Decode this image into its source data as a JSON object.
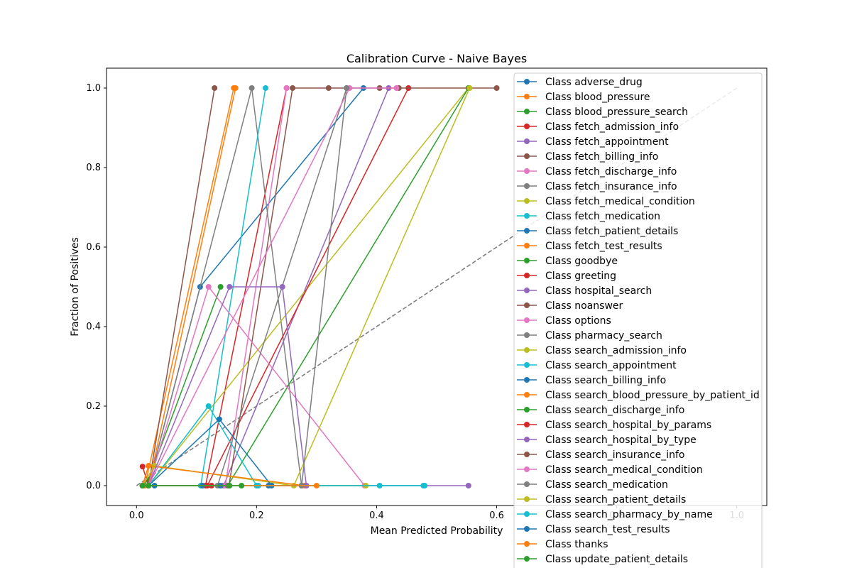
{
  "chart_data": {
    "type": "line",
    "title": "Calibration Curve - Naive Bayes",
    "xlabel": "Mean Predicted Probability",
    "ylabel": "Fraction of Positives",
    "xlim": [
      -0.05,
      1.05
    ],
    "ylim": [
      -0.05,
      1.05
    ],
    "xticks": [
      "0.0",
      "0.2",
      "0.4",
      "0.6",
      "0.8",
      "1.0"
    ],
    "yticks": [
      "0.0",
      "0.2",
      "0.4",
      "0.6",
      "0.8",
      "1.0"
    ],
    "grid": false,
    "legend_placement": "right",
    "reference_line": {
      "style": "dashed",
      "color": "#808080",
      "x": [
        0,
        1
      ],
      "y": [
        0,
        1
      ]
    },
    "series": [
      {
        "name": "Class adverse_drug",
        "color": "#1f77b4",
        "x": [
          0.01,
          0.02,
          0.106,
          0.378
        ],
        "y": [
          0.0,
          0.0,
          0.5,
          1.0
        ]
      },
      {
        "name": "Class blood_pressure",
        "color": "#ff7f0e",
        "x": [
          0.01,
          0.014,
          0.162
        ],
        "y": [
          0.0,
          0.0,
          1.0
        ]
      },
      {
        "name": "Class blood_pressure_search",
        "color": "#2ca02c",
        "x": [
          0.01,
          0.02,
          0.14
        ],
        "y": [
          0.0,
          0.015,
          0.5
        ]
      },
      {
        "name": "Class fetch_admission_info",
        "color": "#d62728",
        "x": [
          0.01,
          0.02,
          0.115,
          0.25
        ],
        "y": [
          0.048,
          0.0,
          0.0,
          1.0
        ]
      },
      {
        "name": "Class fetch_appointment",
        "color": "#9467bd",
        "x": [
          0.01,
          0.02,
          0.145,
          0.42
        ],
        "y": [
          0.0,
          0.0,
          0.0,
          1.0
        ]
      },
      {
        "name": "Class fetch_billing_info",
        "color": "#8c564b",
        "x": [
          0.01,
          0.02,
          0.13
        ],
        "y": [
          0.0,
          0.0,
          1.0
        ]
      },
      {
        "name": "Class fetch_discharge_info",
        "color": "#e377c2",
        "x": [
          0.01,
          0.02,
          0.148,
          0.25
        ],
        "y": [
          0.0,
          0.0,
          0.0,
          1.0
        ]
      },
      {
        "name": "Class fetch_insurance_info",
        "color": "#7f7f7f",
        "x": [
          0.01,
          0.02,
          0.192,
          0.275
        ],
        "y": [
          0.0,
          0.0,
          1.0,
          0.0
        ]
      },
      {
        "name": "Class fetch_medical_condition",
        "color": "#bcbd22",
        "x": [
          0.01,
          0.02,
          0.553
        ],
        "y": [
          0.0,
          0.0,
          1.0
        ]
      },
      {
        "name": "Class fetch_medication",
        "color": "#17becf",
        "x": [
          0.01,
          0.02,
          0.107,
          0.215
        ],
        "y": [
          0.0,
          0.0,
          0.0,
          1.0
        ]
      },
      {
        "name": "Class fetch_patient_details",
        "color": "#1f77b4",
        "x": [
          0.01,
          0.02,
          0.11,
          0.22
        ],
        "y": [
          0.0,
          0.0,
          0.0,
          0.0
        ]
      },
      {
        "name": "Class fetch_test_results",
        "color": "#ff7f0e",
        "x": [
          0.01,
          0.02,
          0.165
        ],
        "y": [
          0.0,
          0.0,
          1.0
        ]
      },
      {
        "name": "Class goodbye",
        "color": "#2ca02c",
        "x": [
          0.01,
          0.02,
          0.152,
          0.553
        ],
        "y": [
          0.0,
          0.0,
          0.0,
          1.0
        ]
      },
      {
        "name": "Class greeting",
        "color": "#d62728",
        "x": [
          0.01,
          0.02,
          0.118,
          0.453
        ],
        "y": [
          0.0,
          0.0,
          0.0,
          1.0
        ]
      },
      {
        "name": "Class hospital_search",
        "color": "#9467bd",
        "x": [
          0.01,
          0.02,
          0.153,
          0.553
        ],
        "y": [
          0.0,
          0.0,
          0.0,
          0.0
        ]
      },
      {
        "name": "Class noanswer",
        "color": "#8c564b",
        "x": [
          0.01,
          0.02,
          0.154,
          0.26,
          0.32,
          0.405,
          0.437,
          0.6
        ],
        "y": [
          0.0,
          0.0,
          0.0,
          1.0,
          1.0,
          1.0,
          1.0,
          1.0
        ]
      },
      {
        "name": "Class options",
        "color": "#e377c2",
        "x": [
          0.01,
          0.02,
          0.12,
          0.38
        ],
        "y": [
          0.0,
          0.0,
          0.5,
          0.0
        ]
      },
      {
        "name": "Class pharmacy_search",
        "color": "#7f7f7f",
        "x": [
          0.01,
          0.02,
          0.135,
          0.35
        ],
        "y": [
          0.0,
          0.0,
          0.0,
          1.0
        ]
      },
      {
        "name": "Class search_admission_info",
        "color": "#bcbd22",
        "x": [
          0.01,
          0.03,
          0.262,
          0.555
        ],
        "y": [
          0.0,
          0.05,
          0.0,
          1.0
        ]
      },
      {
        "name": "Class search_appointment",
        "color": "#17becf",
        "x": [
          0.01,
          0.02,
          0.12,
          0.2,
          0.478
        ],
        "y": [
          0.0,
          0.0,
          0.2,
          0.0,
          0.0
        ]
      },
      {
        "name": "Class search_billing_info",
        "color": "#1f77b4",
        "x": [
          0.01,
          0.02,
          0.138,
          0.225
        ],
        "y": [
          0.0,
          0.0,
          0.167,
          0.0
        ]
      },
      {
        "name": "Class search_blood_pressure_by_patient_id",
        "color": "#ff7f0e",
        "x": [
          0.01,
          0.02,
          0.28
        ],
        "y": [
          0.0,
          0.05,
          0.0
        ]
      },
      {
        "name": "Class search_discharge_info",
        "color": "#2ca02c",
        "x": [
          0.01,
          0.02,
          0.155
        ],
        "y": [
          0.0,
          0.0,
          0.0
        ]
      },
      {
        "name": "Class search_hospital_by_params",
        "color": "#d62728",
        "x": [
          0.01,
          0.02,
          0.125
        ],
        "y": [
          0.0,
          0.0,
          0.0
        ]
      },
      {
        "name": "Class search_hospital_by_type",
        "color": "#9467bd",
        "x": [
          0.01,
          0.02,
          0.155,
          0.243,
          0.283
        ],
        "y": [
          0.0,
          0.0,
          0.5,
          0.5,
          0.0
        ]
      },
      {
        "name": "Class search_insurance_info",
        "color": "#8c564b",
        "x": [
          0.01,
          0.02,
          0.14,
          0.275
        ],
        "y": [
          0.0,
          0.0,
          0.0,
          0.0
        ]
      },
      {
        "name": "Class search_medical_condition",
        "color": "#e377c2",
        "x": [
          0.01,
          0.02,
          0.355,
          0.433
        ],
        "y": [
          0.0,
          0.0,
          1.0,
          1.0
        ]
      },
      {
        "name": "Class search_medication",
        "color": "#7f7f7f",
        "x": [
          0.01,
          0.02,
          0.275,
          0.35
        ],
        "y": [
          0.0,
          0.0,
          0.0,
          1.0
        ]
      },
      {
        "name": "Class search_patient_details",
        "color": "#bcbd22",
        "x": [
          0.01,
          0.02,
          0.382
        ],
        "y": [
          0.0,
          0.0,
          0.0
        ]
      },
      {
        "name": "Class search_pharmacy_by_name",
        "color": "#17becf",
        "x": [
          0.01,
          0.02,
          0.203,
          0.405,
          0.48
        ],
        "y": [
          0.0,
          0.0,
          0.0,
          0.0,
          0.0
        ]
      },
      {
        "name": "Class search_test_results",
        "color": "#1f77b4",
        "x": [
          0.01,
          0.03,
          0.14
        ],
        "y": [
          0.0,
          0.0,
          0.0
        ]
      },
      {
        "name": "Class thanks",
        "color": "#ff7f0e",
        "x": [
          0.01,
          0.02,
          0.3
        ],
        "y": [
          0.0,
          0.0,
          0.0
        ]
      },
      {
        "name": "Class update_patient_details",
        "color": "#2ca02c",
        "x": [
          0.01,
          0.02,
          0.175
        ],
        "y": [
          0.0,
          0.0,
          0.0
        ]
      }
    ]
  }
}
